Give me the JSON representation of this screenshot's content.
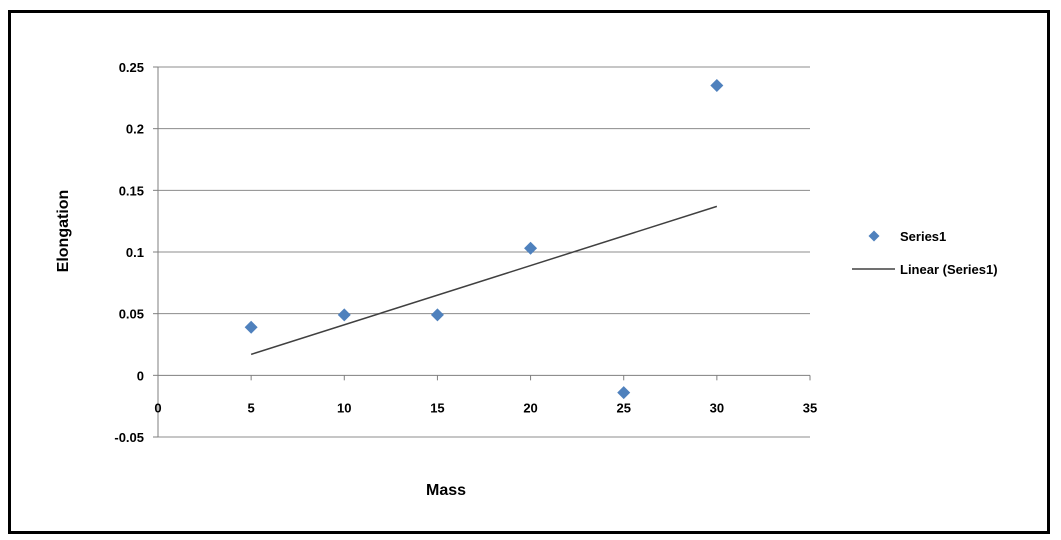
{
  "chart_data": {
    "type": "scatter",
    "title": "",
    "xlabel": "Mass",
    "ylabel": "Elongation",
    "xlim": [
      0,
      35
    ],
    "ylim": [
      -0.05,
      0.25
    ],
    "x_ticks": [
      0,
      5,
      10,
      15,
      20,
      25,
      30,
      35
    ],
    "x_tick_labels": [
      "0",
      "5",
      "10",
      "15",
      "20",
      "25",
      "30",
      "35"
    ],
    "y_ticks": [
      -0.05,
      0,
      0.05,
      0.1,
      0.15,
      0.2,
      0.25
    ],
    "y_tick_labels": [
      "-0.05",
      "0",
      "0.05",
      "0.1",
      "0.15",
      "0.2",
      "0.25"
    ],
    "grid": "horizontal",
    "legend_position": "right",
    "series": [
      {
        "name": "Series1",
        "marker": "diamond",
        "color": "#4f81bd",
        "x": [
          5,
          10,
          15,
          20,
          25,
          30
        ],
        "y": [
          0.039,
          0.049,
          0.049,
          0.103,
          -0.014,
          0.235
        ]
      }
    ],
    "trendline": {
      "name": "Linear (Series1)",
      "type": "linear",
      "color": "#404040",
      "x": [
        5,
        30
      ],
      "y": [
        0.017,
        0.137
      ]
    }
  }
}
